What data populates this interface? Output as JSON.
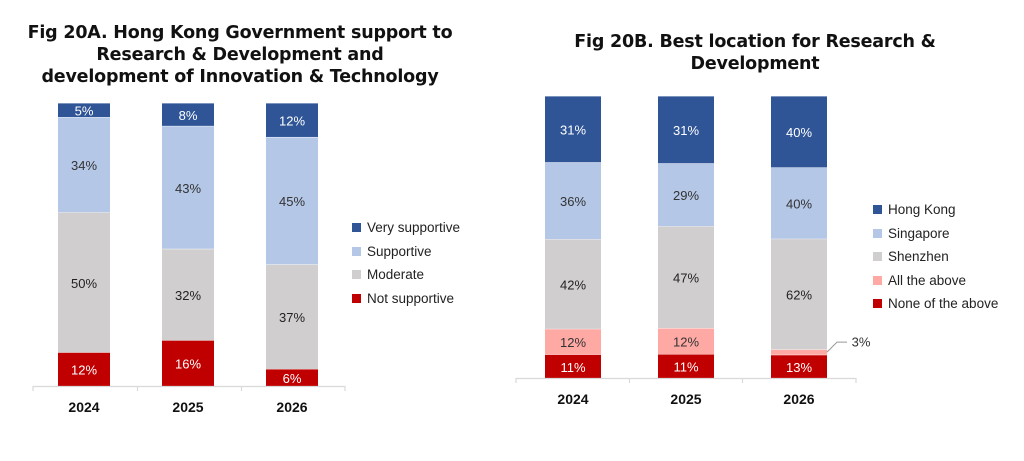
{
  "chart_data": [
    {
      "id": "A",
      "type": "bar",
      "stacked": "percent",
      "title": "Fig 20A. Hong Kong Government support to Research & Development and development of Innovation & Technology",
      "title_lines": [
        "Fig 20A. Hong Kong Government support to",
        "Research & Development and",
        "development of Innovation & Technology"
      ],
      "categories": [
        "2024",
        "2025",
        "2026"
      ],
      "series": [
        {
          "name": "Not supportive",
          "color": "#C00000",
          "label_color": "#ffffff",
          "values": [
            12,
            16,
            6
          ],
          "labels": [
            "12%",
            "16%",
            "6%"
          ]
        },
        {
          "name": "Moderate",
          "color": "#D0CECE",
          "label_color": "#222222",
          "values": [
            50,
            32,
            37
          ],
          "labels": [
            "50%",
            "32%",
            "37%"
          ]
        },
        {
          "name": "Supportive",
          "color": "#B4C7E7",
          "label_color": "#333333",
          "values": [
            34,
            43,
            45
          ],
          "labels": [
            "34%",
            "43%",
            "45%"
          ]
        },
        {
          "name": "Very supportive",
          "color": "#2F5597",
          "label_color": "#ffffff",
          "values": [
            5,
            8,
            12
          ],
          "labels": [
            "5%",
            "8%",
            "12%"
          ]
        }
      ],
      "legend_order": [
        "Very supportive",
        "Supportive",
        "Moderate",
        "Not supportive"
      ],
      "legend_position": "right",
      "xlabel": "",
      "ylabel": "",
      "grid": false
    },
    {
      "id": "B",
      "type": "bar",
      "stacked": "percent",
      "title": "Fig 20B. Best location for Research & Development",
      "title_lines": [
        "Fig 20B. Best location for Research &",
        "Development"
      ],
      "categories": [
        "2024",
        "2025",
        "2026"
      ],
      "series": [
        {
          "name": "None of the above",
          "color": "#C00000",
          "label_color": "#ffffff",
          "values": [
            11,
            11,
            13
          ],
          "labels": [
            "11%",
            "11%",
            "13%"
          ]
        },
        {
          "name": "All the above",
          "color": "#FFA9A5",
          "label_color": "#333333",
          "values": [
            12,
            12,
            3
          ],
          "labels": [
            "12%",
            "12%",
            "3%"
          ]
        },
        {
          "name": "Shenzhen",
          "color": "#D0CECE",
          "label_color": "#222222",
          "values": [
            42,
            47,
            62
          ],
          "labels": [
            "42%",
            "47%",
            "62%"
          ]
        },
        {
          "name": "Singapore",
          "color": "#B4C7E7",
          "label_color": "#333333",
          "values": [
            36,
            29,
            40
          ],
          "labels": [
            "36%",
            "29%",
            "40%"
          ]
        },
        {
          "name": "Hong Kong",
          "color": "#2F5597",
          "label_color": "#ffffff",
          "values": [
            31,
            31,
            40
          ],
          "labels": [
            "31%",
            "31%",
            "40%"
          ]
        }
      ],
      "legend_order": [
        "Hong Kong",
        "Singapore",
        "Shenzhen",
        "All the above",
        "None of the above"
      ],
      "legend_position": "right",
      "callouts": [
        {
          "category": "2026",
          "series": "All the above",
          "label": "3%"
        }
      ],
      "xlabel": "",
      "ylabel": "",
      "grid": false
    }
  ]
}
